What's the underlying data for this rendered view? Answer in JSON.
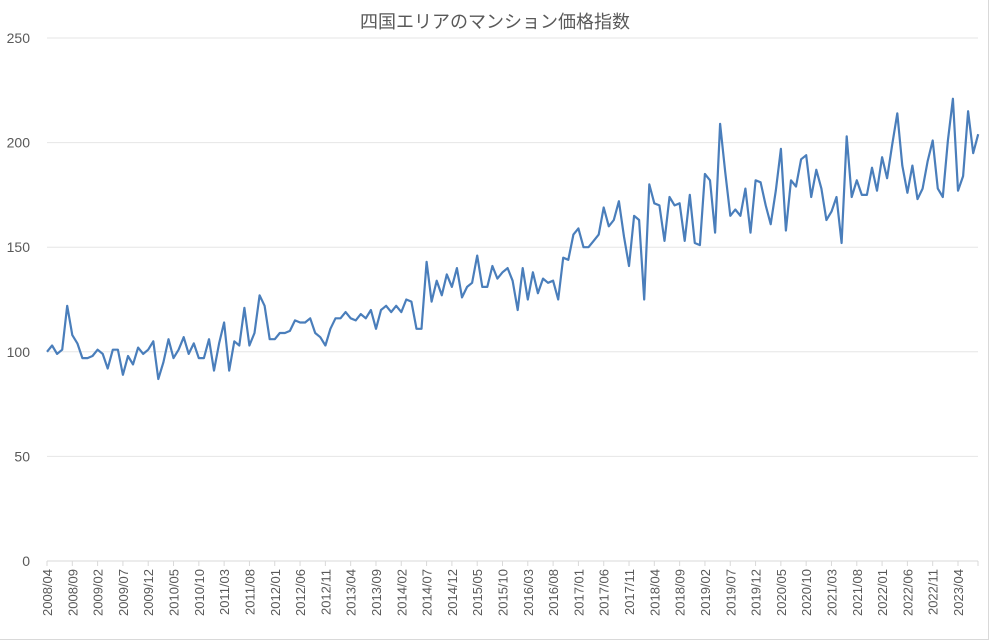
{
  "chart_data": {
    "type": "line",
    "title": "四国エリアのマンション価格指数",
    "xlabel": "",
    "ylabel": "",
    "ylim": [
      0,
      250
    ],
    "yticks": [
      0,
      50,
      100,
      150,
      200,
      250
    ],
    "grid": true,
    "legend": null,
    "line_color": "#4a7ebb",
    "x_tick_labels": [
      "2008/04",
      "2008/09",
      "2009/02",
      "2009/07",
      "2009/12",
      "2010/05",
      "2010/10",
      "2011/03",
      "2011/08",
      "2012/01",
      "2012/06",
      "2012/11",
      "2013/04",
      "2013/09",
      "2014/02",
      "2014/07",
      "2014/12",
      "2015/05",
      "2015/10",
      "2016/03",
      "2016/08",
      "2017/01",
      "2017/06",
      "2017/11",
      "2018/04",
      "2018/09",
      "2019/02",
      "2019/07",
      "2019/12",
      "2020/05",
      "2020/10",
      "2021/03",
      "2021/08",
      "2022/01",
      "2022/06",
      "2022/11",
      "2023/04"
    ],
    "start": "2008/04",
    "end": "2023/08",
    "series": [
      {
        "name": "マンション価格指数",
        "values": [
          100,
          103,
          99,
          101,
          122,
          108,
          104,
          97,
          97,
          98,
          101,
          99,
          92,
          101,
          101,
          89,
          98,
          94,
          102,
          99,
          101,
          105,
          87,
          95,
          106,
          97,
          101,
          107,
          99,
          104,
          97,
          97,
          106,
          91,
          104,
          114,
          91,
          105,
          103,
          121,
          103,
          109,
          127,
          122,
          106,
          106,
          109,
          109,
          110,
          115,
          114,
          114,
          116,
          109,
          107,
          103,
          111,
          116,
          116,
          119,
          116,
          115,
          118,
          116,
          120,
          111,
          120,
          122,
          119,
          122,
          119,
          125,
          124,
          111,
          111,
          143,
          124,
          134,
          127,
          137,
          131,
          140,
          126,
          131,
          133,
          146,
          131,
          131,
          141,
          135,
          138,
          140,
          134,
          120,
          140,
          125,
          138,
          128,
          135,
          133,
          134,
          125,
          145,
          144,
          156,
          159,
          150,
          150,
          153,
          156,
          169,
          160,
          163,
          172,
          155,
          141,
          165,
          163,
          125,
          180,
          171,
          170,
          153,
          174,
          170,
          171,
          153,
          175,
          152,
          151,
          185,
          182,
          157,
          209,
          186,
          165,
          168,
          165,
          178,
          157,
          182,
          181,
          170,
          161,
          177,
          197,
          158,
          182,
          179,
          192,
          194,
          174,
          187,
          178,
          163,
          167,
          174,
          152,
          203,
          174,
          182,
          175,
          175,
          188,
          177,
          193,
          183,
          199,
          214,
          189,
          176,
          189,
          173,
          178,
          191,
          201,
          178,
          174,
          201,
          221,
          177,
          184,
          215,
          195,
          204
        ]
      }
    ]
  }
}
